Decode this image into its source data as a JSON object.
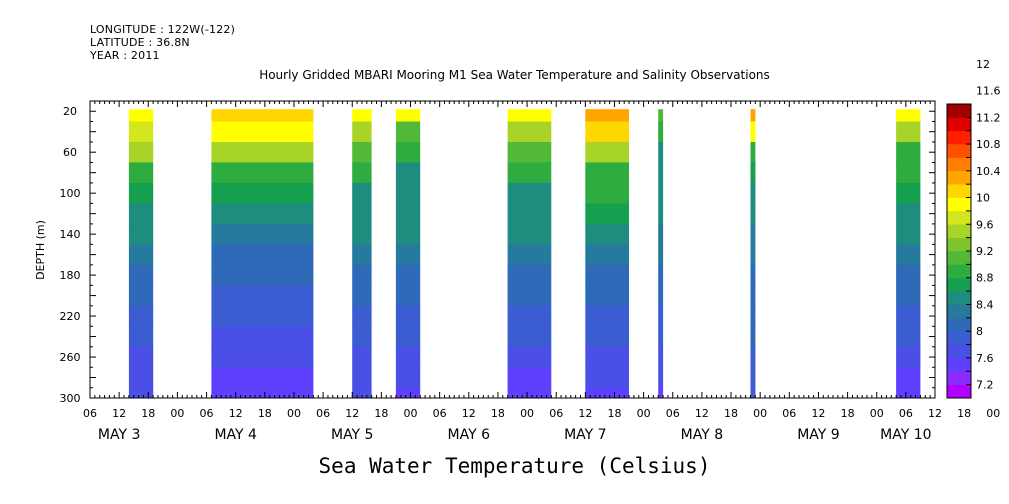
{
  "header": {
    "longitude": "LONGITUDE : 122W(-122)",
    "latitude": "LATITUDE : 36.8N",
    "year": "YEAR : 2011"
  },
  "title": "Hourly Gridded MBARI Mooring M1 Sea Water Temperature and Salinity Observations",
  "colorbar_title": "Sea Water Temperature (Celsius)",
  "chart_data": {
    "type": "heatmap",
    "title": "Hourly Gridded MBARI Mooring M1 Sea Water Temperature and Salinity Observations",
    "ylabel": "DEPTH (m)",
    "xlabel": "",
    "colorbar_label": "Sea Water Temperature (Celsius)",
    "y_range": [
      300,
      10
    ],
    "y_ticks": [
      20,
      60,
      100,
      140,
      180,
      220,
      260,
      300
    ],
    "x_range_hours": [
      0,
      174
    ],
    "x_hour_ticks": [
      "06",
      "12",
      "18",
      "00",
      "06",
      "12",
      "18",
      "00",
      "06",
      "12",
      "18",
      "00",
      "06",
      "12",
      "18",
      "00",
      "06",
      "12",
      "18",
      "00",
      "06",
      "12",
      "18",
      "00",
      "06",
      "12",
      "18",
      "00",
      "06",
      "12",
      "18",
      "00",
      "06"
    ],
    "x_day_labels": [
      "MAY 3",
      "MAY 4",
      "MAY 5",
      "MAY 6",
      "MAY 7",
      "MAY 8",
      "MAY 9",
      "MAY 10"
    ],
    "colorbar_levels": [
      "7.2",
      "7.6",
      "8",
      "8.4",
      "8.8",
      "9.2",
      "9.6",
      "10",
      "10.4",
      "10.8",
      "11.2",
      "11.6",
      "12"
    ],
    "colors": [
      "#b000ff",
      "#8a2bff",
      "#6040ff",
      "#4a50e6",
      "#3c5cd2",
      "#2f6ab8",
      "#257a9e",
      "#1e8c7e",
      "#15a050",
      "#2fac40",
      "#52b838",
      "#7ec42e",
      "#a8d428",
      "#d4e61e",
      "#ffff00",
      "#ffd700",
      "#ffa500",
      "#ff7f00",
      "#ff5000",
      "#ff2000",
      "#e00000",
      "#a00000"
    ],
    "depths": [
      20,
      40,
      60,
      80,
      100,
      120,
      140,
      160,
      180,
      200,
      220,
      240,
      260,
      280,
      300
    ],
    "segments": [
      {
        "start": 8,
        "end": 13,
        "temps": [
          10.0,
          9.7,
          9.4,
          9.0,
          8.7,
          8.5,
          8.4,
          8.3,
          8.2,
          8.1,
          8.0,
          7.9,
          7.8,
          7.7,
          7.7
        ]
      },
      {
        "start": 25,
        "end": 46,
        "temps": [
          10.1,
          9.8,
          9.4,
          9.0,
          8.7,
          8.5,
          8.3,
          8.2,
          8.1,
          8.0,
          7.9,
          7.8,
          7.7,
          7.6,
          7.6
        ]
      },
      {
        "start": 54,
        "end": 58,
        "temps": [
          10.0,
          9.5,
          9.1,
          8.8,
          8.6,
          8.5,
          8.4,
          8.3,
          8.2,
          8.1,
          8.0,
          7.9,
          7.8,
          7.7,
          7.7
        ]
      },
      {
        "start": 63,
        "end": 68,
        "temps": [
          9.8,
          9.2,
          8.8,
          8.6,
          8.5,
          8.5,
          8.4,
          8.3,
          8.2,
          8.1,
          8.0,
          7.9,
          7.8,
          7.7,
          7.6
        ]
      },
      {
        "start": 86,
        "end": 95,
        "temps": [
          9.9,
          9.5,
          9.1,
          8.8,
          8.6,
          8.5,
          8.4,
          8.3,
          8.2,
          8.1,
          8.0,
          7.9,
          7.8,
          7.6,
          7.5
        ]
      },
      {
        "start": 102,
        "end": 111,
        "temps": [
          10.3,
          10.1,
          9.4,
          8.9,
          8.8,
          8.7,
          8.5,
          8.3,
          8.2,
          8.1,
          8.0,
          7.9,
          7.8,
          7.7,
          7.6
        ]
      },
      {
        "start": 117,
        "end": 118,
        "temps": [
          9.2,
          8.8,
          8.6,
          8.5,
          8.4,
          8.4,
          8.3,
          8.3,
          8.2,
          8.1,
          8.0,
          7.9,
          7.8,
          7.7,
          7.6
        ]
      },
      {
        "start": 136,
        "end": 137,
        "temps": [
          10.3,
          9.8,
          9.0,
          8.7,
          8.5,
          8.4,
          8.3,
          8.3,
          8.2,
          8.2,
          8.1,
          8.1,
          8.0,
          8.0,
          8.0
        ]
      },
      {
        "start": 166,
        "end": 171,
        "temps": [
          9.8,
          9.4,
          9.0,
          8.8,
          8.7,
          8.5,
          8.4,
          8.3,
          8.2,
          8.1,
          8.0,
          7.9,
          7.7,
          7.6,
          7.5
        ]
      }
    ]
  }
}
